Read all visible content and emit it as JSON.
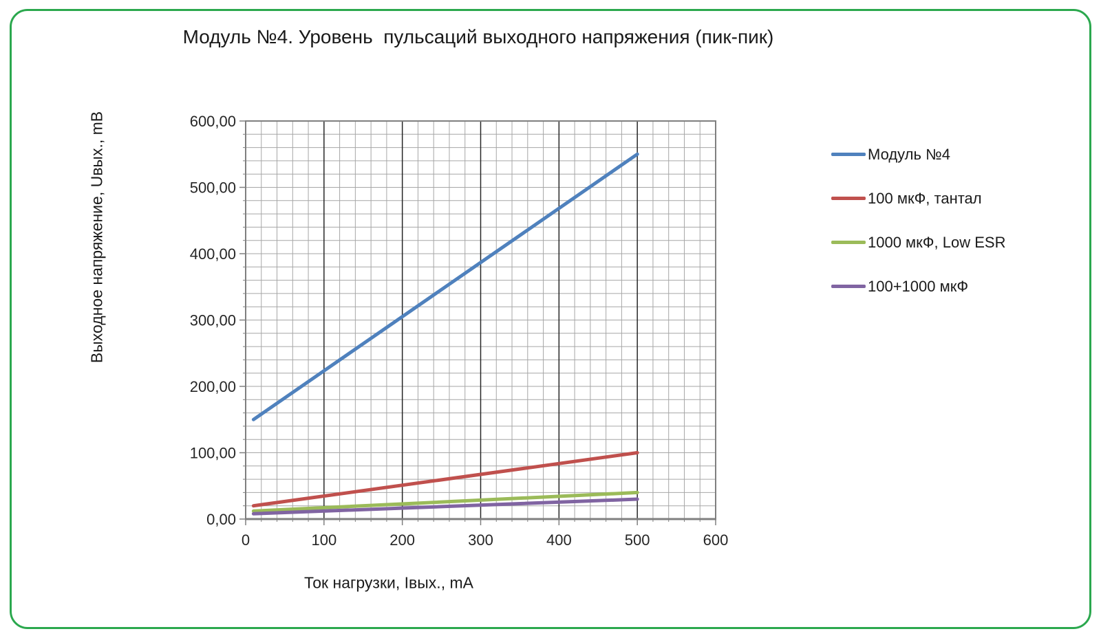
{
  "chart_data": {
    "type": "line",
    "title": "Модуль №4. Уровень  пульсаций выходного напряжения (пик-пик)",
    "x_axis": {
      "title": "Ток нагрузки, Iвых., mA",
      "min": 0,
      "max": 600,
      "major_step": 100,
      "minor_step": 20,
      "ticks": [
        "0",
        "100",
        "200",
        "300",
        "400",
        "500",
        "600"
      ]
    },
    "y_axis": {
      "title": "Выходное напряжение, Uвых., mB",
      "min": 0,
      "max": 600,
      "major_step": 100,
      "minor_step": 20,
      "ticks": [
        "0,00",
        "100,00",
        "200,00",
        "300,00",
        "400,00",
        "500,00",
        "600,00"
      ]
    },
    "grid": "minor gridlines every 20 both axes; vertical major gridlines emphasized black",
    "legend_position": "right",
    "series": [
      {
        "name": "Модуль №4",
        "color": "#4F81BD",
        "points": [
          [
            10,
            150
          ],
          [
            500,
            550
          ]
        ]
      },
      {
        "name": "100 мкФ, тантал",
        "color": "#C0504D",
        "points": [
          [
            10,
            20
          ],
          [
            500,
            100
          ]
        ]
      },
      {
        "name": "1000 мкФ, Low ESR",
        "color": "#9BBB59",
        "points": [
          [
            10,
            12
          ],
          [
            500,
            40
          ]
        ]
      },
      {
        "name": "100+1000 мкФ",
        "color": "#8064A2",
        "points": [
          [
            10,
            8
          ],
          [
            500,
            30
          ]
        ]
      }
    ]
  },
  "colors": {
    "frame_border": "#2BA84E",
    "grid_minor": "#A6A6A6",
    "grid_major": "#262626",
    "axis": "#7F7F7F",
    "tick_text": "#262626"
  }
}
